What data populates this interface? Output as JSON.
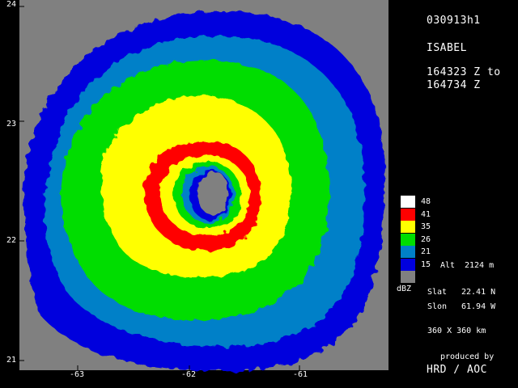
{
  "header": {
    "flight_id": "030913h1",
    "storm": "ISABEL",
    "time_line1": "164323 Z to",
    "time_line2": "164734 Z"
  },
  "legend": {
    "items": [
      {
        "label": "48",
        "color": "#ffffff"
      },
      {
        "label": "41",
        "color": "#ff0000"
      },
      {
        "label": "35",
        "color": "#ffff00"
      },
      {
        "label": "26",
        "color": "#00dd00"
      },
      {
        "label": "21",
        "color": "#0080c8"
      },
      {
        "label": "15",
        "color": "#0000dd"
      },
      {
        "label": "",
        "color": "#808080"
      }
    ],
    "unit": "dBZ",
    "alt_label": "Alt",
    "alt_value": "2124 m"
  },
  "info": {
    "slat_label": "Slat",
    "slat_value": "22.41 N",
    "slon_label": "Slon",
    "slon_value": "61.94 W",
    "extent": "360 X 360 km",
    "credit_line1": "produced by",
    "credit_line2": "HRD / AOC"
  },
  "axes": {
    "y_ticks": [
      "24",
      "23",
      "22",
      "21"
    ],
    "x_ticks": [
      "-63",
      "-62",
      "-61"
    ]
  },
  "colors": {
    "background": "#808080",
    "blue": "#0000dd",
    "lightblue": "#0080c8",
    "green": "#00dd00",
    "yellow": "#ffff00",
    "red": "#ff0000"
  }
}
